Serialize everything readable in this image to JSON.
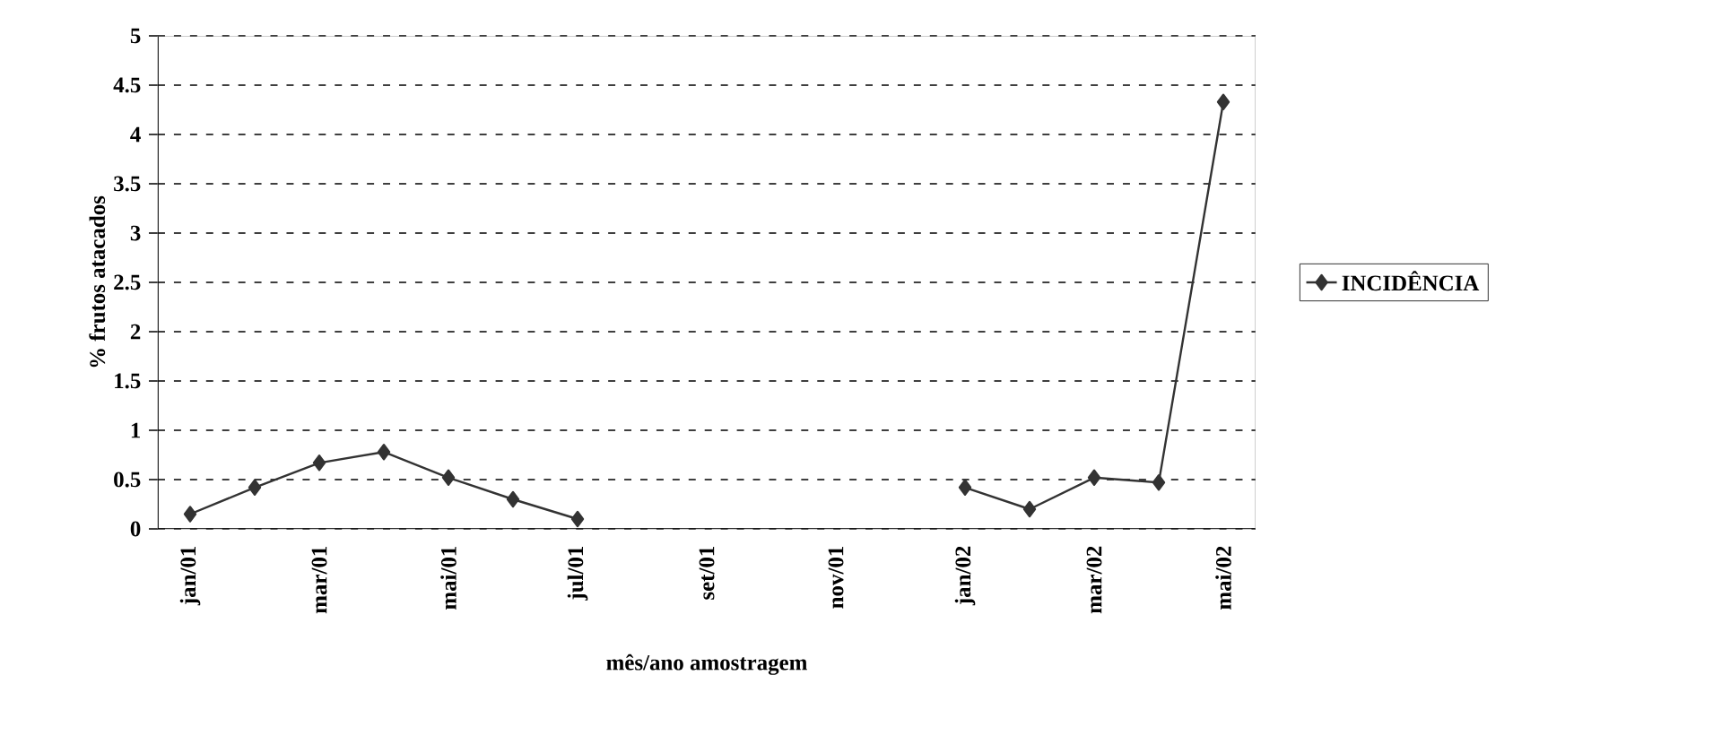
{
  "chart_data": {
    "type": "line",
    "xlabel": "mês/ano amostragem",
    "ylabel": "% frutos atacados",
    "categories": [
      "jan/01",
      null,
      "mar/01",
      null,
      "mai/01",
      null,
      "jul/01",
      null,
      "set/01",
      null,
      "nov/01",
      null,
      "jan/02",
      null,
      "mar/02",
      null,
      "mai/02"
    ],
    "series": [
      {
        "name": "INCIDÊNCIA",
        "color": "#333333",
        "values": [
          0.15,
          0.42,
          0.67,
          0.78,
          0.52,
          0.3,
          0.1,
          null,
          null,
          null,
          null,
          null,
          0.42,
          0.2,
          0.52,
          0.47,
          4.33
        ]
      }
    ],
    "ylim": [
      0,
      5
    ],
    "yticks": [
      0,
      0.5,
      1,
      1.5,
      2,
      2.5,
      3,
      3.5,
      4,
      4.5,
      5
    ],
    "grid": "y",
    "legend": "right",
    "marker": "diamond",
    "line_style": "solid"
  }
}
